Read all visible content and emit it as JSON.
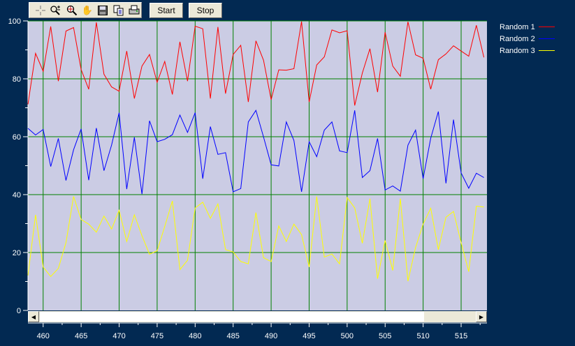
{
  "toolbar": {
    "icons": [
      "crosshair-icon",
      "zoom-in-out-icon",
      "zoom-target-icon",
      "pan-hand-icon",
      "save-icon",
      "copy-icon",
      "print-icon"
    ],
    "start_label": "Start",
    "stop_label": "Stop"
  },
  "chart_data": {
    "type": "line",
    "title": "",
    "xlabel": "",
    "ylabel": "",
    "xlim": [
      458,
      518.4
    ],
    "ylim": [
      0,
      100
    ],
    "grid": true,
    "legend_position": "right",
    "plot_background": "#cbcce4",
    "grid_color": "#008000",
    "x_ticks": [
      460,
      465,
      470,
      475,
      480,
      485,
      490,
      495,
      500,
      505,
      510,
      515
    ],
    "x_tick_labels": [
      "460",
      "465",
      "470",
      "475",
      "480",
      "485",
      "490",
      "495",
      "500",
      "505",
      "510",
      "515"
    ],
    "y_ticks": [
      0,
      20,
      40,
      60,
      80,
      100
    ],
    "y_tick_labels": [
      "0",
      "20",
      "40",
      "60",
      "80",
      "100"
    ],
    "x_start": 458,
    "series": [
      {
        "name": "Random 1",
        "color": "#ff0000",
        "values": [
          71.2,
          88.8,
          82.6,
          98.1,
          79.2,
          96.5,
          97.7,
          83.2,
          76.4,
          99.5,
          81.6,
          77.2,
          75.7,
          89.6,
          73.2,
          84.4,
          88.4,
          78.8,
          86.0,
          74.6,
          92.8,
          79.2,
          98.2,
          97.3,
          73.2,
          97.9,
          74.9,
          88.4,
          91.6,
          72.0,
          93.1,
          86.4,
          72.8,
          83.1,
          83.0,
          83.5,
          99.8,
          72.0,
          84.8,
          87.6,
          96.9,
          95.9,
          96.6,
          70.8,
          82.0,
          90.4,
          75.4,
          96.1,
          84.4,
          80.9,
          99.7,
          88.3,
          87.1,
          76.4,
          86.6,
          88.6,
          91.4,
          89.6,
          87.8,
          98.5,
          87.4
        ]
      },
      {
        "name": "Random 2",
        "color": "#0000ff",
        "values": [
          62.9,
          60.6,
          62.5,
          49.7,
          59.4,
          44.9,
          55.5,
          62.7,
          45.0,
          63.0,
          48.3,
          57.1,
          68.3,
          41.9,
          59.8,
          40.2,
          65.5,
          58.3,
          59.1,
          60.7,
          67.5,
          61.5,
          68.3,
          45.5,
          63.5,
          53.9,
          54.5,
          41.0,
          42.1,
          65.1,
          69.1,
          59.9,
          50.3,
          49.9,
          65.1,
          58.7,
          41.0,
          58.3,
          53.1,
          62.3,
          65.1,
          55.1,
          54.5,
          69.1,
          45.9,
          48.3,
          59.4,
          41.6,
          43.0,
          41.2,
          57.1,
          62.3,
          45.5,
          59.5,
          68.7,
          43.9,
          65.9,
          47.5,
          42.2,
          47.4,
          45.9
        ]
      },
      {
        "name": "Random 3",
        "color": "#ffff00",
        "values": [
          12.1,
          33.0,
          15.0,
          11.7,
          14.5,
          23.4,
          39.4,
          31.4,
          29.8,
          27.0,
          32.6,
          28.1,
          34.6,
          23.8,
          33.0,
          25.8,
          19.4,
          20.6,
          29.0,
          37.8,
          14.1,
          17.3,
          35.4,
          37.4,
          31.8,
          36.8,
          21.0,
          20.2,
          16.9,
          16.1,
          33.8,
          18.2,
          16.9,
          29.2,
          23.8,
          29.8,
          26.2,
          15.0,
          39.4,
          18.4,
          19.5,
          16.1,
          39.0,
          35.4,
          23.2,
          38.6,
          11.0,
          24.2,
          13.8,
          38.6,
          10.1,
          21.7,
          29.8,
          35.3,
          21.0,
          32.2,
          34.2,
          23.4,
          13.4,
          36.0,
          35.7
        ]
      }
    ]
  },
  "legend": [
    {
      "label": "Random 1",
      "color": "#ff0000"
    },
    {
      "label": "Random 2",
      "color": "#0000ff"
    },
    {
      "label": "Random 3",
      "color": "#ffff00"
    }
  ]
}
